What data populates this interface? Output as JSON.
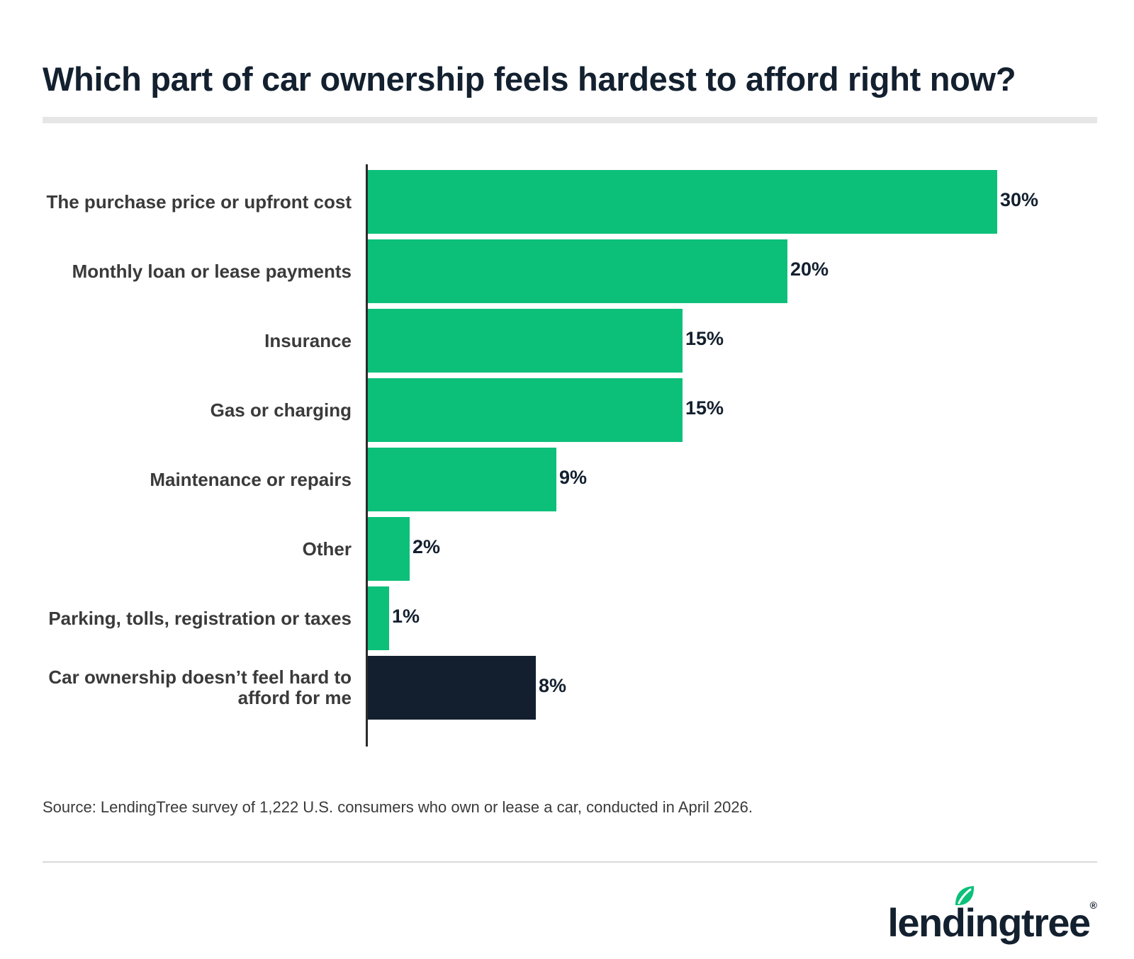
{
  "chart_data": {
    "type": "bar",
    "orientation": "horizontal",
    "title": "Which part of car ownership feels hardest to afford right now?",
    "categories": [
      "The purchase price or upfront cost",
      "Monthly loan or lease payments",
      "Insurance",
      "Gas or charging",
      "Maintenance or repairs",
      "Other",
      "Parking, tolls, registration or taxes",
      "Car ownership doesn’t feel hard to afford for me"
    ],
    "values": [
      30,
      20,
      15,
      15,
      9,
      2,
      1,
      8
    ],
    "value_labels": [
      "30%",
      "20%",
      "15%",
      "15%",
      "9%",
      "2%",
      "1%",
      "8%"
    ],
    "xlim": [
      0,
      30
    ],
    "grid": false,
    "legend": "none",
    "colors": {
      "primary": "#0cc07a",
      "highlight": "#131f2f"
    },
    "highlight_index": 7
  },
  "source": "Source: LendingTree survey of 1,222 U.S. consumers who own or lease a car, conducted in April 2026.",
  "logo": {
    "text": "lendingtree",
    "reg": "®",
    "icon": "leaf-icon"
  }
}
